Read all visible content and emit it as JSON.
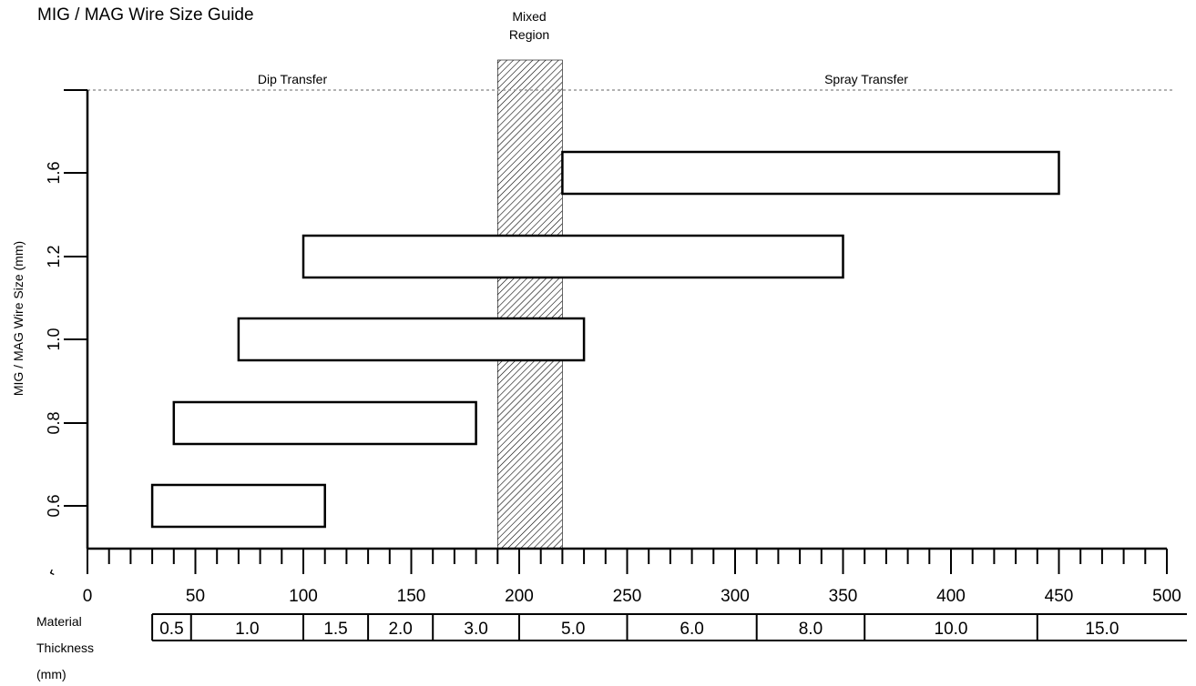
{
  "title": "MIG / MAG Wire Size Guide",
  "y_axis_label": "MIG / MAG Wire Size (mm)",
  "mixed_region_label_line1": "Mixed",
  "mixed_region_label_line2": "Region",
  "dip_label": "Dip Transfer",
  "spray_label": "Spray Transfer",
  "thickness_label": [
    "Material",
    "Thickness",
    "(mm)"
  ],
  "axis_break_symbol": "⌃",
  "chart_data": {
    "type": "bar",
    "title": "MIG / MAG Wire Size Guide",
    "xlabel": "",
    "ylabel": "MIG / MAG Wire Size (mm)",
    "xlim": [
      0,
      500
    ],
    "x_ticks": [
      0,
      50,
      100,
      150,
      200,
      250,
      300,
      350,
      400,
      450,
      500
    ],
    "x_minor_step": 10,
    "categories": [
      "0.6",
      "0.8",
      "1.0",
      "1.2",
      "1.6"
    ],
    "ranges": [
      {
        "wire": "0.6",
        "start": 30,
        "end": 110
      },
      {
        "wire": "0.8",
        "start": 40,
        "end": 180
      },
      {
        "wire": "1.0",
        "start": 70,
        "end": 230
      },
      {
        "wire": "1.2",
        "start": 100,
        "end": 350
      },
      {
        "wire": "1.6",
        "start": 220,
        "end": 450
      }
    ],
    "mixed_region": [
      190,
      220
    ],
    "regions": [
      {
        "name": "Dip Transfer",
        "center": 95
      },
      {
        "name": "Spray Transfer",
        "center": 360
      }
    ],
    "thickness_scale": [
      {
        "label": "0.5",
        "start": 30,
        "end": 48
      },
      {
        "label": "1.0",
        "start": 48,
        "end": 100
      },
      {
        "label": "1.5",
        "start": 100,
        "end": 130
      },
      {
        "label": "2.0",
        "start": 130,
        "end": 160
      },
      {
        "label": "3.0",
        "start": 160,
        "end": 200
      },
      {
        "label": "5.0",
        "start": 200,
        "end": 250
      },
      {
        "label": "6.0",
        "start": 250,
        "end": 310
      },
      {
        "label": "8.0",
        "start": 310,
        "end": 360
      },
      {
        "label": "10.0",
        "start": 360,
        "end": 440
      },
      {
        "label": "15.0",
        "start": 440,
        "end": 500
      }
    ]
  }
}
